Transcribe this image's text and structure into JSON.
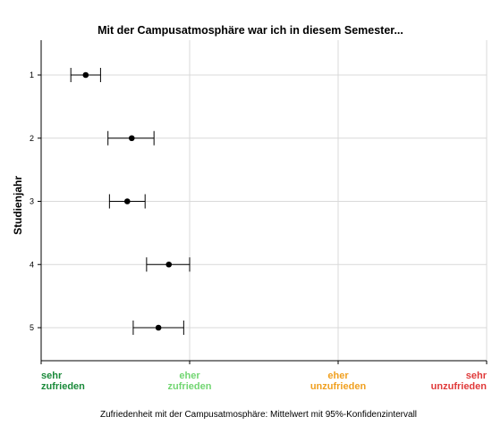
{
  "chart_data": {
    "type": "scatter",
    "title": "Mit der Campusatmosphäre war ich in diesem Semester...",
    "xlabel": "Zufriedenheit mit der Campusatmosphäre: Mittelwert mit 95%-Konfidenzintervall",
    "ylabel": "Studienjahr",
    "xlim": [
      1,
      4
    ],
    "x_ticks": [
      {
        "value": 1,
        "line1": "sehr",
        "line2": "zufrieden",
        "color": "#1a8a3a",
        "align": "start"
      },
      {
        "value": 2,
        "line1": "eher",
        "line2": "zufrieden",
        "color": "#72d672",
        "align": "middle"
      },
      {
        "value": 3,
        "line1": "eher",
        "line2": "unzufrieden",
        "color": "#f0a020",
        "align": "middle"
      },
      {
        "value": 4,
        "line1": "sehr",
        "line2": "unzufrieden",
        "color": "#e03a3a",
        "align": "end"
      }
    ],
    "categories": [
      "1",
      "2",
      "3",
      "4",
      "5"
    ],
    "points": [
      {
        "category": "1",
        "mean": 1.3,
        "ci_low": 1.2,
        "ci_high": 1.4
      },
      {
        "category": "2",
        "mean": 1.61,
        "ci_low": 1.45,
        "ci_high": 1.76
      },
      {
        "category": "3",
        "mean": 1.58,
        "ci_low": 1.46,
        "ci_high": 1.7
      },
      {
        "category": "4",
        "mean": 1.86,
        "ci_low": 1.71,
        "ci_high": 2.0
      },
      {
        "category": "5",
        "mean": 1.79,
        "ci_low": 1.62,
        "ci_high": 1.96
      }
    ],
    "grid": true,
    "legend": "none"
  }
}
